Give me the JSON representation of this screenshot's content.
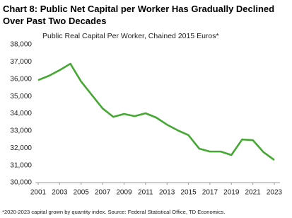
{
  "chart_data": {
    "type": "line",
    "title": "Chart 8: Public Net Capital per Worker Has Gradually Declined Over Past Two Decades",
    "subtitle": "Public Real Capital Per Worker, Chained 2015 Euros*",
    "footnote": "*2020-2023 capital grown by quantity index. Source: Federal Statistical Office, TD Economics.",
    "x": [
      2001,
      2002,
      2003,
      2004,
      2005,
      2006,
      2007,
      2008,
      2009,
      2010,
      2011,
      2012,
      2013,
      2014,
      2015,
      2016,
      2017,
      2018,
      2019,
      2020,
      2021,
      2022,
      2023
    ],
    "series": [
      {
        "color": "#44a832",
        "values": [
          35940,
          36190,
          36520,
          36890,
          35860,
          35080,
          34300,
          33810,
          33980,
          33850,
          34020,
          33770,
          33360,
          33030,
          32750,
          31970,
          31800,
          31800,
          31600,
          32500,
          32460,
          31760,
          31310
        ]
      }
    ],
    "xlim": [
      2001,
      2023
    ],
    "xticks": [
      2001,
      2003,
      2005,
      2007,
      2009,
      2011,
      2013,
      2015,
      2017,
      2019,
      2021,
      2023
    ],
    "ylim": [
      30000,
      38000
    ],
    "yticks": [
      {
        "value": 30000,
        "label": "30,000"
      },
      {
        "value": 31000,
        "label": "31,000"
      },
      {
        "value": 32000,
        "label": "32,000"
      },
      {
        "value": 33000,
        "label": "33,000"
      },
      {
        "value": 34000,
        "label": "34,000"
      },
      {
        "value": 35000,
        "label": "35,000"
      },
      {
        "value": 36000,
        "label": "36,000"
      },
      {
        "value": 37000,
        "label": "37,000"
      },
      {
        "value": 38000,
        "label": "38,000"
      }
    ],
    "grid": false
  }
}
